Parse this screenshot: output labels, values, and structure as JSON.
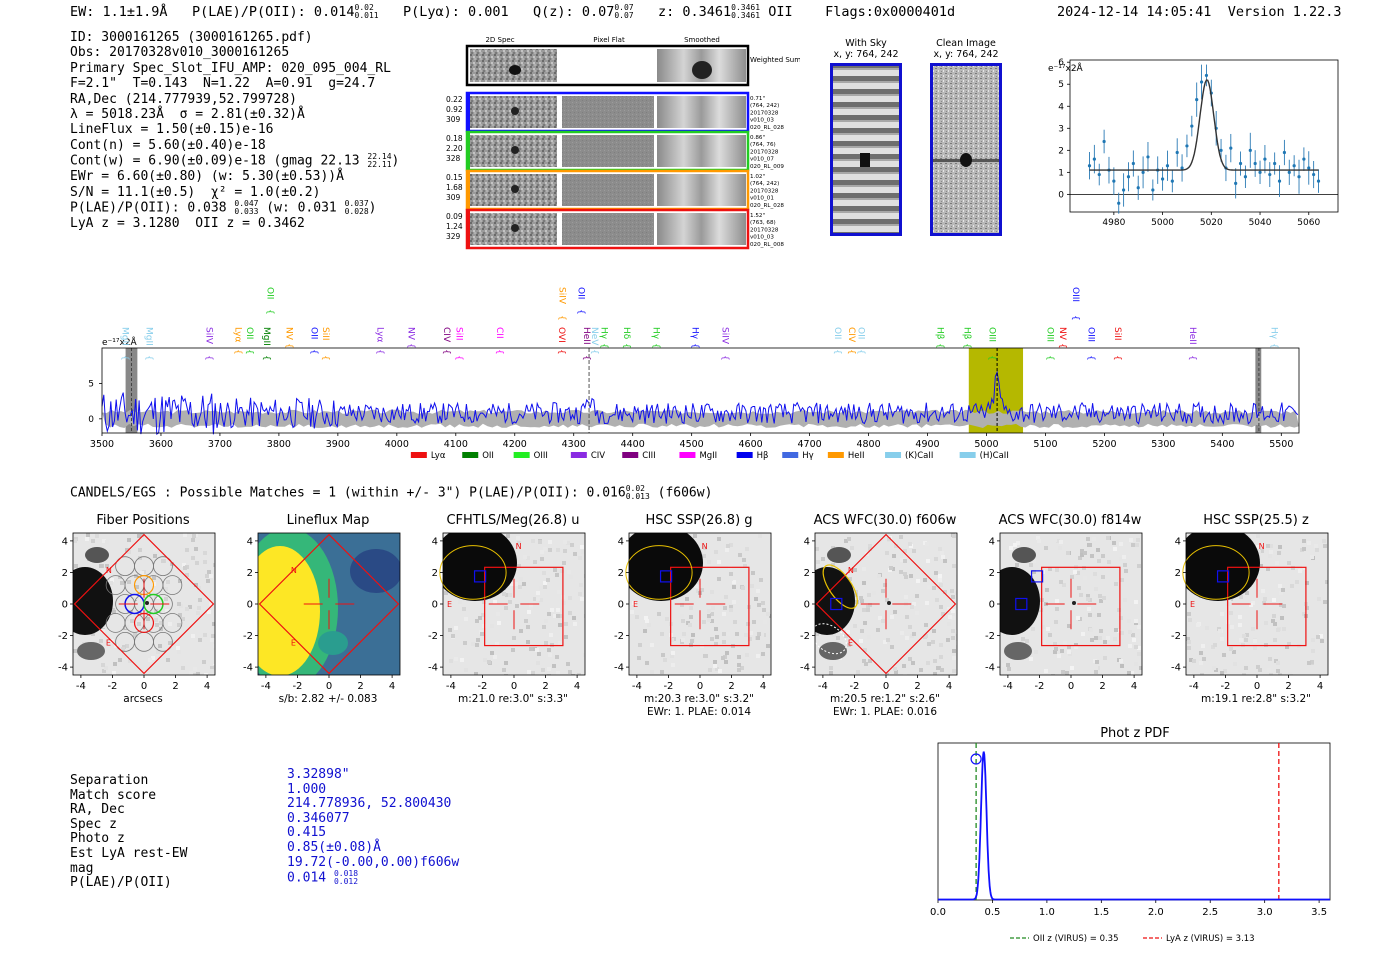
{
  "header": {
    "ew": "EW: 1.1±1.9Å",
    "plae_prefix": "P(LAE)/P(OII): 0.014",
    "plae_hi": "0.02",
    "plae_lo": "0.011",
    "plya": "P(Lyα): 0.001",
    "qz_prefix": "Q(z): 0.07",
    "qz_hi": "0.07",
    "qz_lo": "0.07",
    "z_prefix": "z: 0.3461",
    "z_hi": "0.3461",
    "z_lo": "0.3461",
    "z_line": "OII",
    "flags": "Flags:0x0000401d",
    "datetime": "2024-12-14 14:05:41",
    "version": "Version 1.22.3"
  },
  "info": {
    "l1": "ID: 3000161265 (3000161265.pdf)",
    "l2": "Obs: 20170328v010_3000161265",
    "l3": "Primary Spec_Slot_IFU_AMP: 020_095_004_RL",
    "l4": "F=2.1\"  T=0.143  N=1.22  A=0.91  g=24.7",
    "l5": "RA,Dec (214.777939,52.799728)",
    "l6": "λ = 5018.23Å  σ = 2.81(±0.32)Å",
    "l7": "LineFlux = 1.50(±0.15)e-16",
    "l8": "Cont(n) = 5.60(±0.40)e-18",
    "l9_prefix": "Cont(w) = 6.90(±0.09)e-18 (gmag 22.13",
    "l9_hi": "22.14",
    "l9_lo": "22.11",
    "l9_suffix": ")",
    "l10": "EWr = 6.60(±0.80) (w: 5.30(±0.53))Å",
    "l11": "S/N = 11.1(±0.5)  χ² = 1.0(±0.2)",
    "l12_prefix": "P(LAE)/P(OII): 0.038",
    "l12_hi": "0.047",
    "l12_lo": "0.033",
    "l12_mid": "(w: 0.031",
    "l12_hi2": "0.037",
    "l12_lo2": "0.028",
    "l12_suffix": ")",
    "l13": "LyA z = 3.1280  OII z = 0.3462"
  },
  "spec2d": {
    "col_labels": [
      "2D Spec",
      "Pixel Flat",
      "Smoothed"
    ],
    "weighted_sum": "Weighted Sum",
    "rows": [
      {
        "left": [
          "0.22",
          "0.92",
          "309"
        ],
        "right": [
          "0.71\"",
          "(764, 242)",
          "20170328",
          "v010_03",
          "020_RL_028"
        ],
        "color": "#1010ff"
      },
      {
        "left": [
          "0.18",
          "2.20",
          "328"
        ],
        "right": [
          "0.86\"",
          "(764, 76)",
          "20170328",
          "v010_07",
          "020_RL_009"
        ],
        "color": "#22cc22"
      },
      {
        "left": [
          "0.15",
          "1.68",
          "309"
        ],
        "right": [
          "1.02\"",
          "(764, 242)",
          "20170328",
          "v010_01",
          "020_RL_028"
        ],
        "color": "#ff9900"
      },
      {
        "left": [
          "0.09",
          "1.24",
          "329"
        ],
        "right": [
          "1.52\"",
          "(763, 68)",
          "20170328",
          "v010_03",
          "020_RL_008"
        ],
        "color": "#ee1111"
      }
    ]
  },
  "sky_panels": {
    "with_sky_title": "With Sky",
    "with_sky_xy": "x, y: 764, 242",
    "clean_title": "Clean Image",
    "clean_xy": "x, y: 764, 242"
  },
  "zoom_spec": {
    "ylabel": "e⁻¹⁷x2Å",
    "xticks": [
      "4980",
      "5000",
      "5020",
      "5040",
      "5060"
    ],
    "yticks": [
      "0",
      "1",
      "2",
      "3",
      "4",
      "5",
      "6"
    ],
    "x": [
      4970,
      4972,
      4974,
      4976,
      4978,
      4980,
      4982,
      4984,
      4986,
      4988,
      4990,
      4992,
      4994,
      4996,
      4998,
      5000,
      5002,
      5004,
      5006,
      5008,
      5010,
      5012,
      5014,
      5016,
      5018,
      5020,
      5022,
      5024,
      5026,
      5028,
      5030,
      5032,
      5034,
      5036,
      5038,
      5040,
      5042,
      5044,
      5046,
      5048,
      5050,
      5052,
      5054,
      5056,
      5058,
      5060,
      5062,
      5064
    ],
    "y": [
      1.3,
      1.6,
      0.9,
      2.4,
      1.1,
      0.6,
      -0.4,
      0.2,
      0.8,
      1.4,
      0.3,
      1.0,
      1.7,
      0.2,
      1.1,
      0.7,
      1.3,
      0.6,
      1.9,
      1.2,
      2.2,
      3.1,
      4.3,
      5.1,
      5.4,
      4.6,
      3.0,
      2.0,
      1.2,
      2.1,
      0.5,
      1.4,
      0.8,
      2.0,
      1.4,
      1.0,
      1.6,
      0.9,
      1.4,
      0.6,
      1.9,
      1.0,
      1.3,
      0.8,
      1.6,
      1.2,
      0.9,
      0.6
    ],
    "fit_center": 5018.2,
    "fit_sigma": 2.81,
    "fit_amp": 4.1,
    "fit_cont": 1.1
  },
  "full_spec": {
    "ylabel": "e⁻¹⁷x2Å",
    "xticks": [
      "3500",
      "3600",
      "3700",
      "3800",
      "3900",
      "4000",
      "4100",
      "4200",
      "4300",
      "4400",
      "4500",
      "4600",
      "4700",
      "4800",
      "4900",
      "5000",
      "5100",
      "5200",
      "5300",
      "5400",
      "5500"
    ],
    "yticks": [
      "0",
      "5"
    ],
    "line_labels": [
      {
        "name": "MgII",
        "wave": 3530,
        "color": "#87ceeb",
        "row": "top"
      },
      {
        "name": "MgII",
        "wave": 3570,
        "color": "#87ceeb",
        "row": "top"
      },
      {
        "name": "SiIV",
        "wave": 3672,
        "color": "#8a2be2",
        "row": "mid"
      },
      {
        "name": "Lyα",
        "wave": 3721,
        "color": "#ff9900",
        "row": "mid"
      },
      {
        "name": "OII",
        "wave": 3741,
        "color": "#22cc22",
        "row": "mid"
      },
      {
        "name": "MgII",
        "wave": 3770,
        "color": "#008000",
        "row": "mid"
      },
      {
        "name": "OII",
        "wave": 3776,
        "color": "#22cc22",
        "row": "hi"
      },
      {
        "name": "NV",
        "wave": 3808,
        "color": "#ff9900",
        "row": "mid"
      },
      {
        "name": "OII",
        "wave": 3850,
        "color": "#1010ff",
        "row": "mid"
      },
      {
        "name": "SiII",
        "wave": 3870,
        "color": "#ff9900",
        "row": "mid"
      },
      {
        "name": "Lyα",
        "wave": 3962,
        "color": "#8a2be2",
        "row": "mid"
      },
      {
        "name": "NV",
        "wave": 4015,
        "color": "#8a2be2",
        "row": "mid"
      },
      {
        "name": "CIV",
        "wave": 4075,
        "color": "#800080",
        "row": "mid"
      },
      {
        "name": "SiII",
        "wave": 4096,
        "color": "#ff00ff",
        "row": "mid"
      },
      {
        "name": "CII",
        "wave": 4165,
        "color": "#ff00ff",
        "row": "mid"
      },
      {
        "name": "OVI",
        "wave": 4270,
        "color": "#ee1111",
        "row": "mid"
      },
      {
        "name": "SiIV",
        "wave": 4271,
        "color": "#ff9900",
        "row": "hi"
      },
      {
        "name": "HeII",
        "wave": 4312,
        "color": "#800080",
        "row": "mid"
      },
      {
        "name": "OII",
        "wave": 4303,
        "color": "#1010ff",
        "row": "hi"
      },
      {
        "name": "NeV",
        "wave": 4326,
        "color": "#87ceeb",
        "row": "top"
      },
      {
        "name": "Hγ",
        "wave": 4342,
        "color": "#22cc22",
        "row": "mid"
      },
      {
        "name": "Hδ",
        "wave": 4380,
        "color": "#22cc22",
        "row": "mid"
      },
      {
        "name": "Hγ",
        "wave": 4430,
        "color": "#22cc22",
        "row": "mid"
      },
      {
        "name": "Hγ",
        "wave": 4496,
        "color": "#1010ff",
        "row": "mid"
      },
      {
        "name": "SiIV",
        "wave": 4547,
        "color": "#8a2be2",
        "row": "mid"
      },
      {
        "name": "OII",
        "wave": 4738,
        "color": "#87ceeb",
        "row": "mid"
      },
      {
        "name": "CIV",
        "wave": 4762,
        "color": "#ff9900",
        "row": "mid"
      },
      {
        "name": "OII",
        "wave": 4778,
        "color": "#87ceeb",
        "row": "mid"
      },
      {
        "name": "Hβ",
        "wave": 4912,
        "color": "#22cc22",
        "row": "mid"
      },
      {
        "name": "Hβ",
        "wave": 4958,
        "color": "#22cc22",
        "row": "mid"
      },
      {
        "name": "OIII",
        "wave": 5000,
        "color": "#22cc22",
        "row": "mid"
      },
      {
        "name": "OIII",
        "wave": 5098,
        "color": "#22cc22",
        "row": "mid"
      },
      {
        "name": "NV",
        "wave": 5120,
        "color": "#ee1111",
        "row": "mid"
      },
      {
        "name": "OIII",
        "wave": 5142,
        "color": "#1010ff",
        "row": "hi"
      },
      {
        "name": "OIII",
        "wave": 5168,
        "color": "#1010ff",
        "row": "mid"
      },
      {
        "name": "SiII",
        "wave": 5213,
        "color": "#ee1111",
        "row": "mid"
      },
      {
        "name": "HeII",
        "wave": 5340,
        "color": "#8a2be2",
        "row": "mid"
      },
      {
        "name": "Hγ",
        "wave": 5478,
        "color": "#87ceeb",
        "row": "top"
      }
    ],
    "legend": [
      {
        "name": "Lyα",
        "color": "#ee1111"
      },
      {
        "name": "OII",
        "color": "#008000"
      },
      {
        "name": "OIII",
        "color": "#22ee22"
      },
      {
        "name": "CIV",
        "color": "#8a2be2"
      },
      {
        "name": "CIII",
        "color": "#800080"
      },
      {
        "name": "MgII",
        "color": "#ff00ff"
      },
      {
        "name": "Hβ",
        "color": "#0000ee"
      },
      {
        "name": "Hγ",
        "color": "#4169e1"
      },
      {
        "name": "HeII",
        "color": "#ff9900"
      },
      {
        "name": "(K)CaII",
        "color": "#87ceeb"
      },
      {
        "name": "(H)CaII",
        "color": "#87ceeb"
      }
    ],
    "highlight_wave_lo": 4970,
    "highlight_wave_hi": 5062,
    "line_wave": 5018,
    "neon_wave": 4326,
    "edge_lo": [
      3540,
      3560
    ],
    "edge_hi": [
      5456,
      5466
    ]
  },
  "matches_header": {
    "prefix": "CANDELS/EGS : Possible Matches = 1 (within +/- 3\")  P(LAE)/P(OII): 0.016",
    "hi": "0.02",
    "lo": "0.013",
    "suffix": "(f606w)"
  },
  "cutouts": [
    {
      "title": "Fiber Positions",
      "cap1": "arcsecs",
      "cap2": ""
    },
    {
      "title": "Lineflux Map",
      "cap1": "s/b: 2.82 +/- 0.083",
      "cap2": ""
    },
    {
      "title": "CFHTLS/Meg(26.8) u",
      "cap1": "m:21.0  re:3.0\"  s:3.3\"",
      "cap2": ""
    },
    {
      "title": "HSC SSP(26.8) g",
      "cap1": "m:20.3  re:3.0\"  s:3.2\"",
      "cap2": "EWr: 1. PLAE: 0.014"
    },
    {
      "title": "ACS WFC(30.0) f606w",
      "cap1": "m:20.5  re:1.2\"  s:2.6\"",
      "cap2": "EWr: 1. PLAE: 0.016"
    },
    {
      "title": "ACS WFC(30.0) f814w",
      "cap1": "",
      "cap2": ""
    },
    {
      "title": "HSC SSP(25.5) z",
      "cap1": "m:19.1  re:2.8\"  s:3.2\"",
      "cap2": ""
    }
  ],
  "cutout_ticks": {
    "x": [
      "-4",
      "-2",
      "0",
      "2",
      "4"
    ],
    "y": [
      "4",
      "2",
      "0",
      "-2",
      "-4"
    ]
  },
  "compass": {
    "n": "N",
    "e": "E"
  },
  "match_table": {
    "labels": [
      "Separation",
      "Match score",
      "RA, Dec",
      "Spec z",
      "Photo z",
      "Est LyA rest-EW",
      "mag",
      "P(LAE)/P(OII)"
    ],
    "values": [
      "3.32898\"",
      "1.000",
      "214.778936, 52.800430",
      "0.346077",
      "0.415",
      "0.85(±0.08)Å",
      "19.72(-0.00,0.00)f606w",
      "0.014"
    ],
    "plae_hi": "0.018",
    "plae_lo": "0.012"
  },
  "photz": {
    "title": "Phot z PDF",
    "xticks": [
      "0.0",
      "0.5",
      "1.0",
      "1.5",
      "2.0",
      "2.5",
      "3.0",
      "3.5"
    ],
    "oii_z": 0.35,
    "lya_z": 3.13,
    "peak_z": 0.42,
    "legend_oii": "OII z (VIRUS) = 0.35",
    "legend_lya": "LyA z (VIRUS) = 3.13",
    "colors": {
      "oii": "#228b22",
      "lya": "#ee1111",
      "pdf": "#1010ff"
    }
  }
}
